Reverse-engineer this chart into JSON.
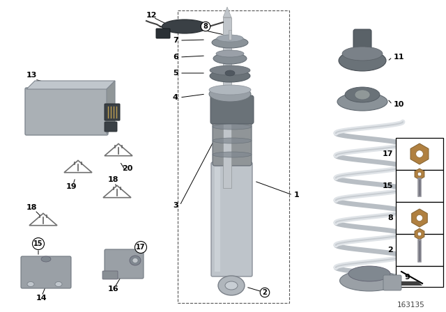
{
  "bg_color": "#ffffff",
  "part_number": "163135",
  "shock_rod_color": "#c8cdd2",
  "shock_tube_color": "#b8bec5",
  "boot_color": "#909598",
  "spring_color": "#e8eaec",
  "spring_edge_color": "#b0b5ba",
  "cu_color": "#aab0b5",
  "dark_part_color": "#707880",
  "mid_part_color": "#9098a0"
}
